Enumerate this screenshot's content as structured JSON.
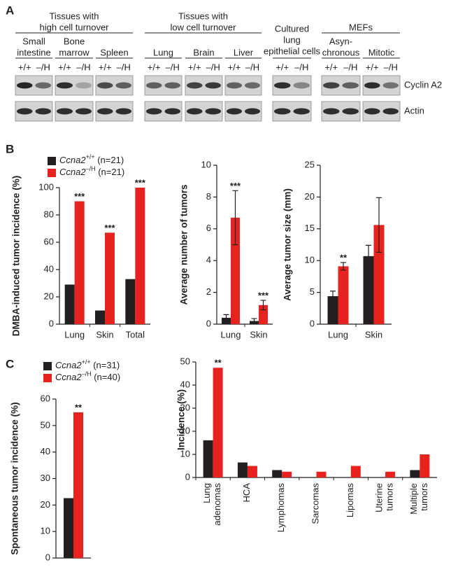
{
  "panels": [
    "A",
    "B",
    "C"
  ],
  "blot": {
    "groups": [
      {
        "label": [
          "Tissues with",
          "high cell turnover"
        ]
      },
      {
        "label": [
          "Tissues with",
          "low cell turnover"
        ]
      },
      {
        "label": [
          "Cultured",
          "lung",
          "epithelial cells"
        ]
      },
      {
        "label": [
          "MEFs"
        ]
      }
    ],
    "tissues": [
      {
        "label": [
          "Small",
          "intestine"
        ],
        "lanes": [
          "+/+",
          "–/H"
        ]
      },
      {
        "label": [
          "Bone",
          "marrow"
        ],
        "lanes": [
          "+/+",
          "–/H"
        ]
      },
      {
        "label": [
          "Spleen"
        ],
        "lanes": [
          "+/+",
          "–/H"
        ]
      },
      {
        "label": [
          "Lung"
        ],
        "lanes": [
          "+/+",
          "–/H"
        ]
      },
      {
        "label": [
          "Brain"
        ],
        "lanes": [
          "+/+",
          "–/H"
        ]
      },
      {
        "label": [
          "Liver"
        ],
        "lanes": [
          "+/+",
          "–/H"
        ]
      },
      {
        "lanes": [
          "+/+",
          "–/H"
        ]
      },
      {
        "label": [
          "Asyn-",
          "chronous"
        ],
        "lanes": [
          "+/+",
          "–/H"
        ]
      },
      {
        "label": [
          "Mitotic"
        ],
        "lanes": [
          "+/+",
          "–/H"
        ]
      }
    ],
    "rows": [
      "Cyclin A2",
      "Actin"
    ]
  },
  "chart_data": [
    {
      "type": "bar",
      "ylabel": "DMBA-induced tumor incidence (%)",
      "categories": [
        "Lung",
        "Skin",
        "Total"
      ],
      "series": [
        {
          "name": "Ccna2+/+ (n=21)",
          "color": "#231f20",
          "values": [
            29,
            10,
            33
          ]
        },
        {
          "name": "Ccna2–/H (n=21)",
          "color": "#e8231f",
          "values": [
            90,
            67,
            100
          ]
        }
      ],
      "ylim": [
        0,
        100
      ],
      "yticks": [
        0,
        20,
        40,
        60,
        80,
        100
      ],
      "annotations": [
        {
          "text": "***",
          "x": "Lung"
        },
        {
          "text": "***",
          "x": "Skin"
        },
        {
          "text": "***",
          "x": "Total"
        }
      ]
    },
    {
      "type": "bar",
      "ylabel": "Average number of tumors",
      "categories": [
        "Lung",
        "Skin"
      ],
      "series": [
        {
          "color": "#231f20",
          "values": [
            0.4,
            0.2
          ],
          "error": [
            0.2,
            0.15
          ]
        },
        {
          "color": "#e8231f",
          "values": [
            6.7,
            1.2
          ],
          "error": [
            1.7,
            0.3
          ]
        }
      ],
      "ylim": [
        0,
        10
      ],
      "yticks": [
        0,
        2,
        4,
        6,
        8,
        10
      ],
      "annotations": [
        {
          "text": "***",
          "x": "Lung"
        },
        {
          "text": "***",
          "x": "Skin"
        }
      ]
    },
    {
      "type": "bar",
      "ylabel": "Average tumor size (mm)",
      "categories": [
        "Lung",
        "Skin"
      ],
      "series": [
        {
          "color": "#231f20",
          "values": [
            4.4,
            10.7
          ],
          "error": [
            0.8,
            1.7
          ]
        },
        {
          "color": "#e8231f",
          "values": [
            9.1,
            15.6
          ],
          "error": [
            0.6,
            4.3
          ]
        }
      ],
      "ylim": [
        0,
        25
      ],
      "yticks": [
        0,
        5,
        10,
        15,
        20,
        25
      ],
      "annotations": [
        {
          "text": "**",
          "x": "Lung"
        }
      ]
    },
    {
      "type": "bar",
      "ylabel": "Spontaneous tumor incidence (%)",
      "categories": [
        null
      ],
      "series": [
        {
          "name": "Ccna2+/+ (n=31)",
          "color": "#231f20",
          "values": [
            22.6
          ]
        },
        {
          "name": "Ccna2–/H (n=40)",
          "color": "#e8231f",
          "values": [
            55
          ]
        }
      ],
      "ylim": [
        0,
        60
      ],
      "yticks": [
        0,
        10,
        20,
        30,
        40,
        50,
        60
      ],
      "annotations": [
        {
          "text": "**",
          "x": null
        }
      ]
    },
    {
      "type": "bar",
      "ylabel": "Incidence (%)",
      "categories": [
        "Lung adenomas",
        "HCA",
        "Lymphomas",
        "Sarcomas",
        "Lipomas",
        "Uterine tumors",
        "Multiple tumors"
      ],
      "series": [
        {
          "color": "#231f20",
          "values": [
            16.1,
            6.5,
            3.2,
            0,
            0,
            0,
            3.2
          ]
        },
        {
          "color": "#e8231f",
          "values": [
            47.5,
            5,
            2.5,
            2.5,
            5,
            2.5,
            10
          ]
        }
      ],
      "ylim": [
        0,
        50
      ],
      "yticks": [
        0,
        10,
        20,
        30,
        40,
        50
      ],
      "annotations": [
        {
          "text": "**",
          "x": "Lung adenomas"
        }
      ]
    }
  ]
}
